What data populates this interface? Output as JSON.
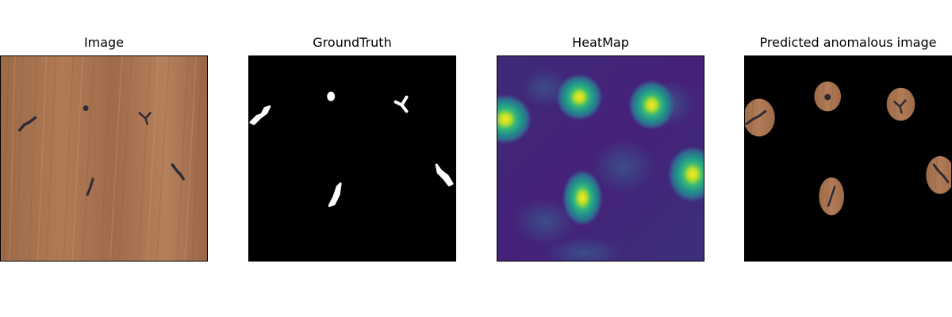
{
  "panels": [
    {
      "title": "Image"
    },
    {
      "title": "GroundTruth"
    },
    {
      "title": "HeatMap"
    },
    {
      "title": "Predicted anomalous image"
    }
  ],
  "colors": {
    "wood_base": "#a46f4c",
    "wood_light": "#c28e68",
    "wood_dark": "#8a5a3a",
    "defect": "#2e2a35",
    "mask_background": "#000000",
    "mask_foreground": "#ffffff",
    "heat_low": "#46237b",
    "heat_mid": "#22908c",
    "heat_high": "#fde725"
  }
}
